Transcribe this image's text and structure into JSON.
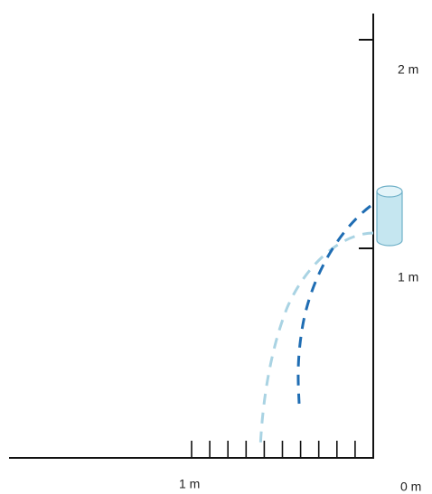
{
  "vertical_axis": {
    "labels": [
      "2 m",
      "1 m"
    ]
  },
  "horizontal_axis": {
    "labels": [
      "1 m",
      "0 m"
    ]
  }
}
